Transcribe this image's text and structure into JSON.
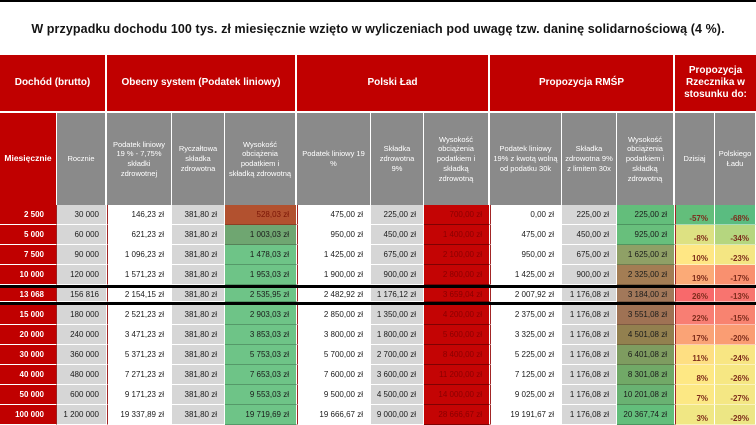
{
  "title": "W przypadku dochodu 100 tys. zł miesięcznie wzięto w wyliczeniach pod uwagę tzw. daninę solidarnościową (4 %).",
  "colors": {
    "header_red": "#c00000",
    "header_gray": "#8a8a8a",
    "row_label_red": "#c00000",
    "cell_gray": "#d6d6d6",
    "burden_polski_lad_bg": "#c40404",
    "burden_polski_lad_text": "#8a0000",
    "burden_current_green": "#6ec487",
    "percent_text": "#7d2c1c",
    "highlight_border": "#000000"
  },
  "chart_data": {
    "type": "table",
    "title": "W przypadku dochodu 100 tys. zł miesięcznie wzięto w wyliczeniach pod uwagę tzw. daninę solidarnościową (4 %).",
    "groups": [
      {
        "label": "Dochód (brutto)"
      },
      {
        "label": "Obecny system (Podatek liniowy)"
      },
      {
        "label": "Polski Ład"
      },
      {
        "label": "Propozycja RMŚP"
      },
      {
        "label": "Propozycja Rzecznika w stosunku do:"
      }
    ],
    "columns": [
      "Miesięcznie",
      "Rocznie",
      "Podatek liniowy 19 % - 7,75% składki zdrowotnej",
      "Ryczałtowa składka zdrowotna",
      "Wysokość obciążenia podatkiem i składką zdrowotną",
      "Podatek liniowy 19 %",
      "Składka zdrowotna 9%",
      "Wysokość obciążenia podatkiem i składką zdrowotną",
      "Podatek liniowy 19% z kwotą wolną od podatku 30k",
      "Składka zdrowotna 9% z limitem 30x",
      "Wysokość obciążenia podatkiem i składką zdrowotną",
      "Dzisiaj",
      "Polskiego Ładu"
    ],
    "rows": [
      {
        "highlight": false,
        "values": [
          "2 500",
          "30 000",
          "146,23 zł",
          "381,80 zł",
          "528,03 zł",
          "475,00 zł",
          "225,00 zł",
          "700,00 zł",
          "0,00 zł",
          "225,00 zł",
          "225,00 zł",
          "-57%",
          "-68%"
        ],
        "cell_colors": {
          "4": "#b2512f",
          "10": "#63be7b",
          "11": "#63be7b",
          "12": "#5abc80"
        },
        "cell_fg": {
          "4": "#7a1506"
        }
      },
      {
        "highlight": false,
        "values": [
          "5 000",
          "60 000",
          "621,23 zł",
          "381,80 zł",
          "1 003,03 zł",
          "950,00 zł",
          "450,00 zł",
          "1 400,00 zł",
          "475,00 zł",
          "450,00 zł",
          "925,00 zł",
          "-8%",
          "-34%"
        ],
        "cell_colors": {
          "4": "#6fa671",
          "10": "#68bf7c",
          "11": "#dde182",
          "12": "#b5d67f"
        }
      },
      {
        "highlight": false,
        "values": [
          "7 500",
          "90 000",
          "1 096,23 zł",
          "381,80 zł",
          "1 478,03 zł",
          "1 425,00 zł",
          "675,00 zł",
          "2 100,00 zł",
          "950,00 zł",
          "675,00 zł",
          "1 625,00 zł",
          "10%",
          "-23%"
        ],
        "cell_colors": {
          "4": "#6ec487",
          "10": "#8fa066",
          "11": "#ffe784",
          "12": "#f4e683"
        }
      },
      {
        "highlight": false,
        "values": [
          "10 000",
          "120 000",
          "1 571,23 zł",
          "381,80 zł",
          "1 953,03 zł",
          "1 900,00 zł",
          "900,00 zł",
          "2 800,00 zł",
          "1 425,00 zł",
          "900,00 zł",
          "2 325,00 zł",
          "19%",
          "-17%"
        ],
        "cell_colors": {
          "4": "#6ec487",
          "10": "#a37d54",
          "11": "#fbaa77",
          "12": "#f9906f"
        }
      },
      {
        "highlight": true,
        "values": [
          "13 068",
          "156 816",
          "2 154,15 zł",
          "381,80 zł",
          "2 535,95 zł",
          "2 482,92 zł",
          "1 176,12 zł",
          "3 659,04 zł",
          "2 007,92 zł",
          "1 176,08 zł",
          "3 184,00 zł",
          "26%",
          "-13%"
        ],
        "cell_colors": {
          "4": "#6ec487",
          "10": "#a2785a",
          "11": "#f8696b",
          "12": "#f8746f"
        }
      },
      {
        "highlight": false,
        "values": [
          "15 000",
          "180 000",
          "2 521,23 zł",
          "381,80 zł",
          "2 903,03 zł",
          "2 850,00 zł",
          "1 350,00 zł",
          "4 200,00 zł",
          "2 375,00 zł",
          "1 176,08 zł",
          "3 551,08 zł",
          "22%",
          "-15%"
        ],
        "cell_colors": {
          "4": "#6ec487",
          "10": "#9f7254",
          "11": "#f87e73",
          "12": "#f88370"
        }
      },
      {
        "highlight": false,
        "values": [
          "20 000",
          "240 000",
          "3 471,23 zł",
          "381,80 zł",
          "3 853,03 zł",
          "3 800,00 zł",
          "1 800,00 zł",
          "5 600,00 zł",
          "3 325,00 zł",
          "1 176,08 zł",
          "4 501,08 zł",
          "17%",
          "-20%"
        ],
        "cell_colors": {
          "4": "#6ec487",
          "10": "#92804f",
          "11": "#faa376",
          "12": "#fa9d73"
        }
      },
      {
        "highlight": false,
        "values": [
          "30 000",
          "360 000",
          "5 371,23 zł",
          "381,80 zł",
          "5 753,03 zł",
          "5 700,00 zł",
          "2 700,00 zł",
          "8 400,00 zł",
          "5 225,00 zł",
          "1 176,08 zł",
          "6 401,08 zł",
          "11%",
          "-24%"
        ],
        "cell_colors": {
          "4": "#6ec487",
          "10": "#7e9c60",
          "11": "#fedf82",
          "12": "#f8e683"
        }
      },
      {
        "highlight": false,
        "values": [
          "40 000",
          "480 000",
          "7 271,23 zł",
          "381,80 zł",
          "7 653,03 zł",
          "7 600,00 zł",
          "3 600,00 zł",
          "11 200,00 zł",
          "7 125,00 zł",
          "1 176,08 zł",
          "8 301,08 zł",
          "8%",
          "-26%"
        ],
        "cell_colors": {
          "4": "#6ec487",
          "10": "#71a967",
          "11": "#fee884",
          "12": "#f6e783"
        }
      },
      {
        "highlight": false,
        "values": [
          "50 000",
          "600 000",
          "9 171,23 zł",
          "381,80 zł",
          "9 553,03 zł",
          "9 500,00 zł",
          "4 500,00 zł",
          "14 000,00 zł",
          "9 025,00 zł",
          "1 176,08 zł",
          "10 201,08 zł",
          "7%",
          "-27%"
        ],
        "cell_colors": {
          "4": "#6ec487",
          "10": "#69b272",
          "11": "#fce884",
          "12": "#f4e784"
        }
      },
      {
        "highlight": false,
        "values": [
          "100 000",
          "1 200 000",
          "19 337,89 zł",
          "381,80 zł",
          "19 719,69 zł",
          "19 666,67 zł",
          "9 000,00 zł",
          "28 666,67 zł",
          "19 191,67 zł",
          "1 176,08 zł",
          "20 367,74 zł",
          "3%",
          "-29%"
        ],
        "cell_colors": {
          "4": "#6ec487",
          "10": "#63be7b",
          "11": "#f0e784",
          "12": "#ece684"
        }
      }
    ]
  }
}
